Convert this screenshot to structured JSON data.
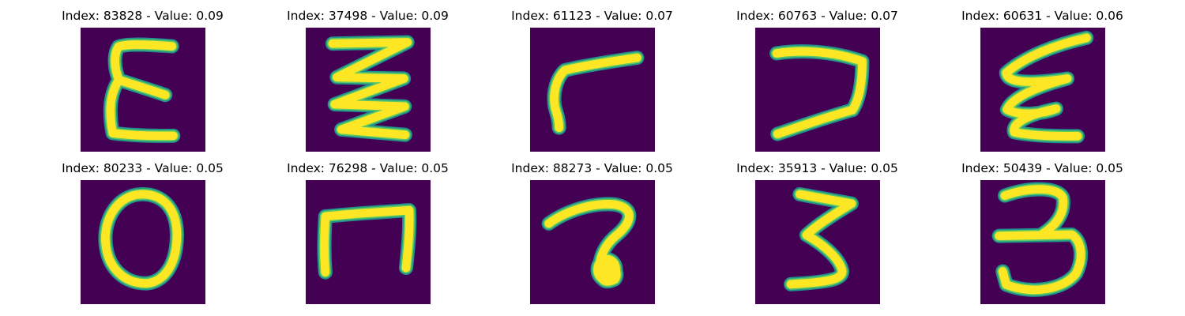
{
  "background": "#440154",
  "stroke_colors": {
    "edge": "#21918c",
    "mid": "#5ec962",
    "core": "#fde725"
  },
  "panels": [
    {
      "title": "Index: 83828 - Value: 0.09",
      "glyph": "epsilon-shaped handwritten stroke",
      "icon": "digit-glyph-icon"
    },
    {
      "title": "Index: 37498 - Value: 0.09",
      "glyph": "zigzag handwritten stroke",
      "icon": "digit-glyph-icon"
    },
    {
      "title": "Index: 61123 - Value: 0.07",
      "glyph": "hook-shaped handwritten stroke",
      "icon": "digit-glyph-icon"
    },
    {
      "title": "Index: 60763 - Value: 0.07",
      "glyph": "seven-shaped handwritten stroke",
      "icon": "digit-glyph-icon"
    },
    {
      "title": "Index: 60631 - Value: 0.06",
      "glyph": "slanted epsilon handwritten stroke",
      "icon": "digit-glyph-icon"
    },
    {
      "title": "Index: 80233 - Value: 0.05",
      "glyph": "zero-shaped handwritten stroke",
      "icon": "digit-glyph-icon"
    },
    {
      "title": "Index: 76298 - Value: 0.05",
      "glyph": "n-shaped handwritten stroke",
      "icon": "digit-glyph-icon"
    },
    {
      "title": "Index: 88273 - Value: 0.05",
      "glyph": "loop-shaped handwritten stroke",
      "icon": "digit-glyph-icon"
    },
    {
      "title": "Index: 35913 - Value: 0.05",
      "glyph": "three-shaped handwritten stroke",
      "icon": "digit-glyph-icon"
    },
    {
      "title": "Index: 50439 - Value: 0.05",
      "glyph": "three-shaped handwritten stroke",
      "icon": "digit-glyph-icon"
    }
  ]
}
